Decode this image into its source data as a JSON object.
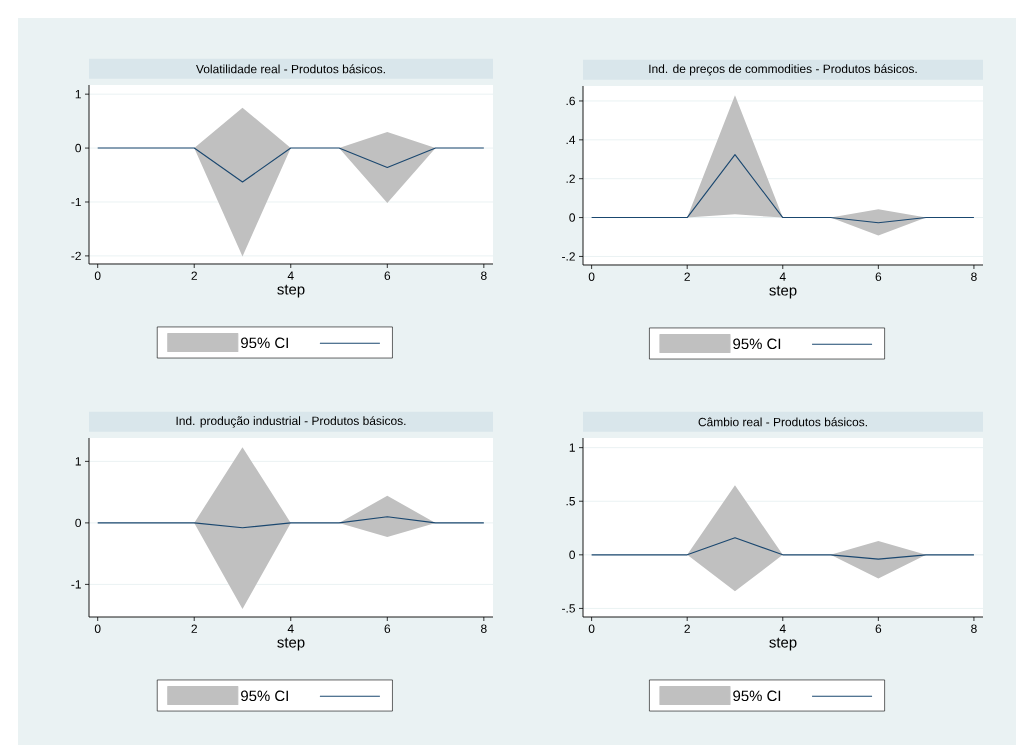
{
  "chart_data": [
    {
      "type": "line",
      "title": "Volatilidade real - Produtos básicos.",
      "xlabel": "step",
      "x": [
        0,
        1,
        2,
        3,
        4,
        5,
        6,
        7,
        8
      ],
      "series": [
        {
          "name": "95% CI",
          "color": "#1a476f",
          "values": [
            0,
            0,
            0,
            -0.63,
            0,
            0,
            -0.36,
            0,
            0
          ],
          "lower": [
            0,
            0,
            0,
            -2.01,
            0,
            0,
            -1.02,
            0,
            0
          ],
          "upper": [
            0,
            0,
            0,
            0.75,
            0,
            0,
            0.3,
            0,
            0
          ]
        }
      ],
      "xlim": [
        -0.18,
        8.19
      ],
      "ylim": [
        -2.15,
        1.17
      ],
      "xticks": [
        0,
        2,
        4,
        6,
        8
      ],
      "yticks": [
        -2,
        -1,
        0,
        1
      ],
      "grid": "y",
      "legend": "bottom"
    },
    {
      "type": "line",
      "title": "Ind. de preços de commodities - Produtos básicos.",
      "xlabel": "step",
      "x": [
        0,
        1,
        2,
        3,
        4,
        5,
        6,
        7,
        8
      ],
      "series": [
        {
          "name": "95% CI",
          "color": "#1a476f",
          "values": [
            0,
            0,
            0,
            0.324,
            0,
            0,
            -0.027,
            0,
            0
          ],
          "lower": [
            0,
            0,
            0,
            0.017,
            0,
            0,
            -0.092,
            0,
            0
          ],
          "upper": [
            0,
            0,
            0,
            0.63,
            0,
            0,
            0.043,
            0,
            0
          ]
        }
      ],
      "xlim": [
        -0.18,
        8.19
      ],
      "ylim": [
        -0.244,
        0.677
      ],
      "xticks": [
        0,
        2,
        4,
        6,
        8
      ],
      "yticks": [
        {
          "value": -0.2,
          "label": "-.2"
        },
        0,
        {
          "value": 0.2,
          "label": ".2"
        },
        {
          "value": 0.4,
          "label": ".4"
        },
        {
          "value": 0.6,
          "label": ".6"
        }
      ],
      "grid": "y",
      "legend": "bottom"
    },
    {
      "type": "line",
      "title": "Ind. produção industrial - Produtos básicos.",
      "xlabel": "step",
      "x": [
        0,
        1,
        2,
        3,
        4,
        5,
        6,
        7,
        8
      ],
      "series": [
        {
          "name": "95% CI",
          "color": "#1a476f",
          "values": [
            0,
            0,
            0,
            -0.08,
            0,
            0,
            0.1,
            0,
            0
          ],
          "lower": [
            0,
            0,
            0,
            -1.4,
            0,
            0,
            -0.23,
            0,
            0
          ],
          "upper": [
            0,
            0,
            0,
            1.23,
            0,
            0,
            0.44,
            0,
            0
          ]
        }
      ],
      "xlim": [
        -0.18,
        8.19
      ],
      "ylim": [
        -1.53,
        1.38
      ],
      "xticks": [
        0,
        2,
        4,
        6,
        8
      ],
      "yticks": [
        -1,
        0,
        1
      ],
      "grid": "y",
      "legend": "bottom"
    },
    {
      "type": "line",
      "title": "Câmbio real - Produtos básicos.",
      "xlabel": "step",
      "x": [
        0,
        1,
        2,
        3,
        4,
        5,
        6,
        7,
        8
      ],
      "series": [
        {
          "name": "95% CI",
          "color": "#1a476f",
          "values": [
            0,
            0,
            0,
            0.16,
            0,
            0,
            -0.04,
            0,
            0
          ],
          "lower": [
            0,
            0,
            0,
            -0.34,
            0,
            0,
            -0.22,
            0,
            0
          ],
          "upper": [
            0,
            0,
            0,
            0.65,
            0,
            0,
            0.13,
            0,
            0
          ]
        }
      ],
      "xlim": [
        -0.18,
        8.19
      ],
      "ylim": [
        -0.58,
        1.09
      ],
      "xticks": [
        0,
        2,
        4,
        6,
        8
      ],
      "yticks": [
        {
          "value": -0.5,
          "label": "-.5"
        },
        0,
        {
          "value": 0.5,
          "label": ".5"
        },
        1
      ],
      "grid": "y",
      "legend": "bottom"
    }
  ]
}
